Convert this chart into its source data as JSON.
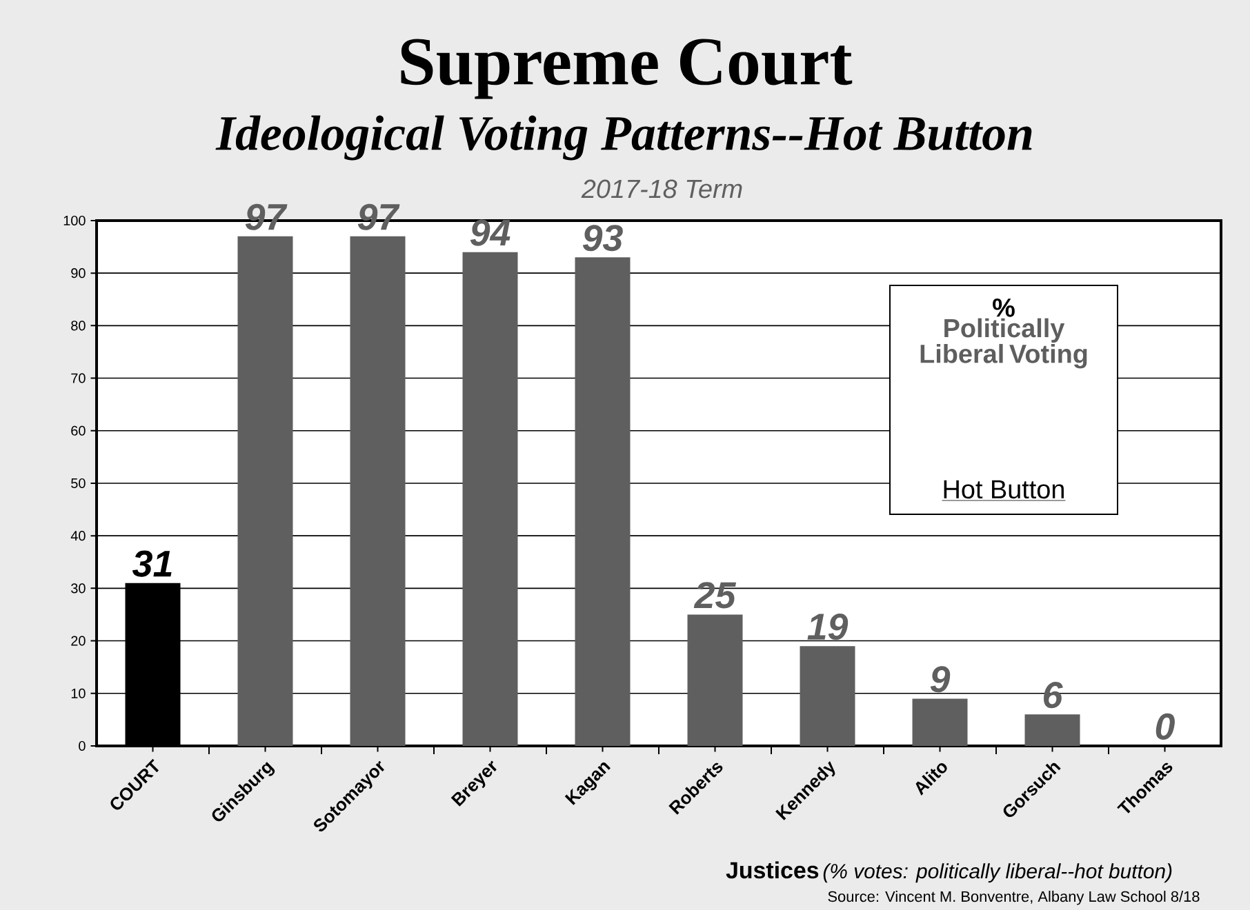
{
  "chart_data": {
    "type": "bar",
    "title": "Supreme Court",
    "subtitle": "Ideological Voting Patterns--Hot Button",
    "xlabel": "Justices",
    "annotations": [
      "2017-18 Term",
      "%",
      "Politically Liberal Voting",
      "Hot Button",
      "(% votes: politically liberal--hot button)",
      "Source: Vincent M. Bonventre, Albany Law School  8/18"
    ],
    "categories": [
      "COURT",
      "Ginsburg",
      "Sotomayor",
      "Breyer",
      "Kagan",
      "Roberts",
      "Kennedy",
      "Alito",
      "Gorsuch",
      "Thomas"
    ],
    "values": [
      31,
      97,
      97,
      94,
      93,
      25,
      19,
      9,
      6,
      0
    ],
    "colors": [
      "#000000",
      "#5f5f5f",
      "#5f5f5f",
      "#5f5f5f",
      "#5f5f5f",
      "#5f5f5f",
      "#5f5f5f",
      "#5f5f5f",
      "#5f5f5f",
      "#5f5f5f"
    ],
    "ylim": [
      0,
      100
    ],
    "yticks": [
      0,
      10,
      20,
      30,
      40,
      50,
      60,
      70,
      80,
      90,
      100
    ],
    "grid": "y",
    "data_labels": true
  }
}
